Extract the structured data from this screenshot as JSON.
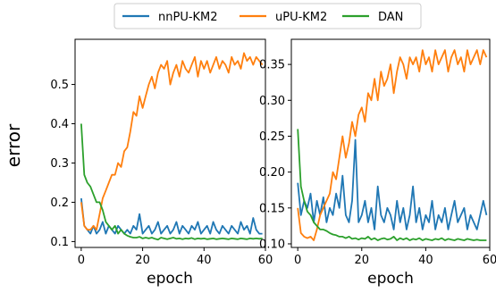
{
  "chart_data": {
    "type": "line",
    "ylabel": "error",
    "legend": {
      "placement": "top-center",
      "entries": [
        {
          "name": "nnPU-KM2",
          "color": "#1f77b4"
        },
        {
          "name": "uPU-KM2",
          "color": "#ff7f0e"
        },
        {
          "name": "DAN",
          "color": "#2ca02c"
        }
      ]
    },
    "grid": false,
    "panels": [
      {
        "xlabel": "epoch",
        "xlim": [
          -2,
          60
        ],
        "ylim": [
          0.085,
          0.615
        ],
        "xticks": [
          0,
          20,
          40,
          60
        ],
        "xtick_labels": [
          "0",
          "20",
          "40",
          "60"
        ],
        "yticks": [
          0.1,
          0.2,
          0.3,
          0.4,
          0.5
        ],
        "ytick_labels": [
          "0.1",
          "0.2",
          "0.3",
          "0.4",
          "0.5"
        ],
        "series": [
          {
            "name": "nnPU-KM2",
            "color": "#1f77b4",
            "x": [
              0,
              1,
              2,
              3,
              4,
              5,
              6,
              7,
              8,
              9,
              10,
              11,
              12,
              13,
              14,
              15,
              16,
              17,
              18,
              19,
              20,
              21,
              22,
              23,
              24,
              25,
              26,
              27,
              28,
              29,
              30,
              31,
              32,
              33,
              34,
              35,
              36,
              37,
              38,
              39,
              40,
              41,
              42,
              43,
              44,
              45,
              46,
              47,
              48,
              49,
              50,
              51,
              52,
              53,
              54,
              55,
              56,
              57,
              58,
              59
            ],
            "y": [
              0.21,
              0.14,
              0.13,
              0.12,
              0.14,
              0.12,
              0.13,
              0.15,
              0.12,
              0.14,
              0.13,
              0.12,
              0.14,
              0.13,
              0.12,
              0.13,
              0.12,
              0.14,
              0.13,
              0.17,
              0.12,
              0.13,
              0.14,
              0.12,
              0.13,
              0.15,
              0.12,
              0.13,
              0.14,
              0.12,
              0.13,
              0.15,
              0.12,
              0.14,
              0.13,
              0.12,
              0.14,
              0.13,
              0.15,
              0.12,
              0.13,
              0.14,
              0.12,
              0.15,
              0.13,
              0.12,
              0.14,
              0.13,
              0.12,
              0.14,
              0.13,
              0.12,
              0.15,
              0.13,
              0.14,
              0.12,
              0.16,
              0.13,
              0.12,
              0.12
            ]
          },
          {
            "name": "uPU-KM2",
            "color": "#ff7f0e",
            "x": [
              0,
              1,
              2,
              3,
              4,
              5,
              6,
              7,
              8,
              9,
              10,
              11,
              12,
              13,
              14,
              15,
              16,
              17,
              18,
              19,
              20,
              21,
              22,
              23,
              24,
              25,
              26,
              27,
              28,
              29,
              30,
              31,
              32,
              33,
              34,
              35,
              36,
              37,
              38,
              39,
              40,
              41,
              42,
              43,
              44,
              45,
              46,
              47,
              48,
              49,
              50,
              51,
              52,
              53,
              54,
              55,
              56,
              57,
              58,
              59
            ],
            "y": [
              0.2,
              0.14,
              0.13,
              0.13,
              0.14,
              0.13,
              0.17,
              0.21,
              0.23,
              0.25,
              0.27,
              0.27,
              0.3,
              0.29,
              0.33,
              0.34,
              0.38,
              0.43,
              0.42,
              0.47,
              0.44,
              0.47,
              0.5,
              0.52,
              0.49,
              0.53,
              0.55,
              0.54,
              0.56,
              0.5,
              0.53,
              0.55,
              0.52,
              0.56,
              0.54,
              0.53,
              0.55,
              0.57,
              0.52,
              0.56,
              0.54,
              0.56,
              0.53,
              0.55,
              0.57,
              0.54,
              0.56,
              0.55,
              0.53,
              0.57,
              0.55,
              0.56,
              0.54,
              0.58,
              0.56,
              0.57,
              0.55,
              0.57,
              0.56,
              0.55
            ]
          },
          {
            "name": "DAN",
            "color": "#2ca02c",
            "x": [
              0,
              1,
              2,
              3,
              4,
              5,
              6,
              7,
              8,
              9,
              10,
              11,
              12,
              13,
              14,
              15,
              16,
              17,
              18,
              19,
              20,
              21,
              22,
              23,
              24,
              25,
              26,
              27,
              28,
              29,
              30,
              31,
              32,
              33,
              34,
              35,
              36,
              37,
              38,
              39,
              40,
              41,
              42,
              43,
              44,
              45,
              46,
              47,
              48,
              49,
              50,
              51,
              52,
              53,
              54,
              55,
              56,
              57,
              58,
              59
            ],
            "y": [
              0.4,
              0.27,
              0.25,
              0.24,
              0.22,
              0.2,
              0.2,
              0.18,
              0.15,
              0.14,
              0.13,
              0.14,
              0.12,
              0.13,
              0.12,
              0.115,
              0.112,
              0.11,
              0.11,
              0.112,
              0.108,
              0.11,
              0.108,
              0.11,
              0.107,
              0.105,
              0.11,
              0.108,
              0.106,
              0.108,
              0.11,
              0.107,
              0.108,
              0.106,
              0.108,
              0.107,
              0.109,
              0.106,
              0.108,
              0.107,
              0.108,
              0.106,
              0.107,
              0.108,
              0.106,
              0.107,
              0.108,
              0.107,
              0.106,
              0.108,
              0.107,
              0.106,
              0.108,
              0.107,
              0.106,
              0.108,
              0.107,
              0.108,
              0.107,
              0.108
            ]
          }
        ]
      },
      {
        "xlabel": "epoch",
        "xlim": [
          -2,
          60
        ],
        "ylim": [
          0.095,
          0.385
        ],
        "xticks": [
          0,
          20,
          40,
          60
        ],
        "xtick_labels": [
          "0",
          "20",
          "40",
          "60"
        ],
        "yticks": [
          0.1,
          0.15,
          0.2,
          0.25,
          0.3,
          0.35
        ],
        "ytick_labels": [
          "0.10",
          "0.15",
          "0.20",
          "0.25",
          "0.30",
          "0.35"
        ],
        "series": [
          {
            "name": "nnPU-KM2",
            "color": "#1f77b4",
            "x": [
              0,
              1,
              2,
              3,
              4,
              5,
              6,
              7,
              8,
              9,
              10,
              11,
              12,
              13,
              14,
              15,
              16,
              17,
              18,
              19,
              20,
              21,
              22,
              23,
              24,
              25,
              26,
              27,
              28,
              29,
              30,
              31,
              32,
              33,
              34,
              35,
              36,
              37,
              38,
              39,
              40,
              41,
              42,
              43,
              44,
              45,
              46,
              47,
              48,
              49,
              50,
              51,
              52,
              53,
              54,
              55,
              56,
              57,
              58,
              59
            ],
            "y": [
              0.185,
              0.14,
              0.16,
              0.15,
              0.17,
              0.13,
              0.16,
              0.14,
              0.165,
              0.13,
              0.15,
              0.14,
              0.17,
              0.15,
              0.195,
              0.14,
              0.13,
              0.16,
              0.245,
              0.13,
              0.14,
              0.16,
              0.13,
              0.15,
              0.12,
              0.18,
              0.14,
              0.13,
              0.15,
              0.14,
              0.12,
              0.16,
              0.13,
              0.15,
              0.12,
              0.14,
              0.18,
              0.13,
              0.15,
              0.12,
              0.14,
              0.13,
              0.16,
              0.12,
              0.14,
              0.13,
              0.15,
              0.12,
              0.14,
              0.16,
              0.13,
              0.14,
              0.15,
              0.12,
              0.14,
              0.13,
              0.12,
              0.14,
              0.16,
              0.14
            ]
          },
          {
            "name": "uPU-KM2",
            "color": "#ff7f0e",
            "x": [
              0,
              1,
              2,
              3,
              4,
              5,
              6,
              7,
              8,
              9,
              10,
              11,
              12,
              13,
              14,
              15,
              16,
              17,
              18,
              19,
              20,
              21,
              22,
              23,
              24,
              25,
              26,
              27,
              28,
              29,
              30,
              31,
              32,
              33,
              34,
              35,
              36,
              37,
              38,
              39,
              40,
              41,
              42,
              43,
              44,
              45,
              46,
              47,
              48,
              49,
              50,
              51,
              52,
              53,
              54,
              55,
              56,
              57,
              58,
              59
            ],
            "y": [
              0.15,
              0.115,
              0.11,
              0.108,
              0.11,
              0.105,
              0.12,
              0.14,
              0.15,
              0.16,
              0.17,
              0.2,
              0.19,
              0.22,
              0.25,
              0.22,
              0.24,
              0.27,
              0.25,
              0.28,
              0.29,
              0.27,
              0.31,
              0.3,
              0.33,
              0.3,
              0.34,
              0.32,
              0.33,
              0.35,
              0.31,
              0.34,
              0.36,
              0.35,
              0.33,
              0.36,
              0.35,
              0.36,
              0.34,
              0.37,
              0.35,
              0.36,
              0.34,
              0.37,
              0.35,
              0.36,
              0.37,
              0.34,
              0.36,
              0.37,
              0.35,
              0.36,
              0.34,
              0.37,
              0.35,
              0.36,
              0.37,
              0.35,
              0.37,
              0.36
            ]
          },
          {
            "name": "DAN",
            "color": "#2ca02c",
            "x": [
              0,
              1,
              2,
              3,
              4,
              5,
              6,
              7,
              8,
              9,
              10,
              11,
              12,
              13,
              14,
              15,
              16,
              17,
              18,
              19,
              20,
              21,
              22,
              23,
              24,
              25,
              26,
              27,
              28,
              29,
              30,
              31,
              32,
              33,
              34,
              35,
              36,
              37,
              38,
              39,
              40,
              41,
              42,
              43,
              44,
              45,
              46,
              47,
              48,
              49,
              50,
              51,
              52,
              53,
              54,
              55,
              56,
              57,
              58,
              59
            ],
            "y": [
              0.26,
              0.18,
              0.16,
              0.145,
              0.14,
              0.13,
              0.125,
              0.12,
              0.12,
              0.118,
              0.115,
              0.113,
              0.112,
              0.11,
              0.11,
              0.108,
              0.11,
              0.107,
              0.108,
              0.106,
              0.108,
              0.107,
              0.11,
              0.106,
              0.108,
              0.105,
              0.107,
              0.108,
              0.106,
              0.107,
              0.11,
              0.105,
              0.108,
              0.106,
              0.108,
              0.105,
              0.107,
              0.106,
              0.108,
              0.105,
              0.107,
              0.106,
              0.105,
              0.107,
              0.106,
              0.108,
              0.105,
              0.107,
              0.106,
              0.105,
              0.107,
              0.106,
              0.105,
              0.107,
              0.106,
              0.105,
              0.106,
              0.105,
              0.105,
              0.105
            ]
          }
        ]
      }
    ]
  }
}
